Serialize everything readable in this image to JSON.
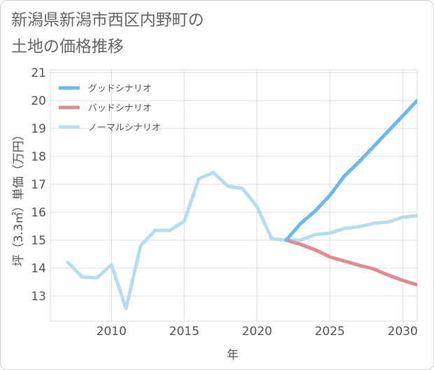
{
  "title_lines": [
    "新潟県新潟市西区内野町の",
    "土地の価格推移"
  ],
  "chart_data": {
    "type": "line",
    "title": "新潟県新潟市西区内野町の土地の価格推移",
    "xlabel": "年",
    "ylabel": "坪（3.3㎡）単価（万円）",
    "xlim": [
      2005.8,
      2031
    ],
    "ylim": [
      12.1,
      21.1
    ],
    "xticks": [
      2010,
      2015,
      2020,
      2025,
      2030
    ],
    "yticks": [
      13,
      14,
      15,
      16,
      17,
      18,
      19,
      20,
      21
    ],
    "grid": true,
    "legend_position": "top-left",
    "series": [
      {
        "name": "グッドシナリオ",
        "color": "#6bb8ea",
        "x": [
          2022,
          2023,
          2024,
          2025,
          2026,
          2027,
          2028,
          2029,
          2030,
          2031
        ],
        "y": [
          15.0,
          15.6,
          16.05,
          16.6,
          17.3,
          17.8,
          18.35,
          18.9,
          19.45,
          20.0
        ]
      },
      {
        "name": "バッドシナリオ",
        "color": "#de8c92",
        "x": [
          2022,
          2023,
          2024,
          2025,
          2026,
          2027,
          2028,
          2029,
          2030,
          2031
        ],
        "y": [
          15.0,
          14.85,
          14.65,
          14.4,
          14.25,
          14.1,
          13.97,
          13.75,
          13.56,
          13.4
        ]
      },
      {
        "name": "ノーマルシナリオ",
        "color": "#b7dcec",
        "x": [
          2007,
          2008,
          2009,
          2010,
          2011,
          2012,
          2013,
          2014,
          2015,
          2016,
          2017,
          2018,
          2019,
          2020,
          2021,
          2022,
          2023,
          2024,
          2025,
          2026,
          2027,
          2028,
          2029,
          2030,
          2031
        ],
        "y": [
          14.2,
          13.68,
          13.65,
          14.12,
          12.55,
          14.8,
          15.35,
          15.35,
          15.68,
          17.2,
          17.42,
          16.93,
          16.85,
          16.2,
          15.05,
          15.0,
          15.0,
          15.2,
          15.25,
          15.42,
          15.48,
          15.6,
          15.65,
          15.82,
          15.88
        ]
      }
    ]
  }
}
